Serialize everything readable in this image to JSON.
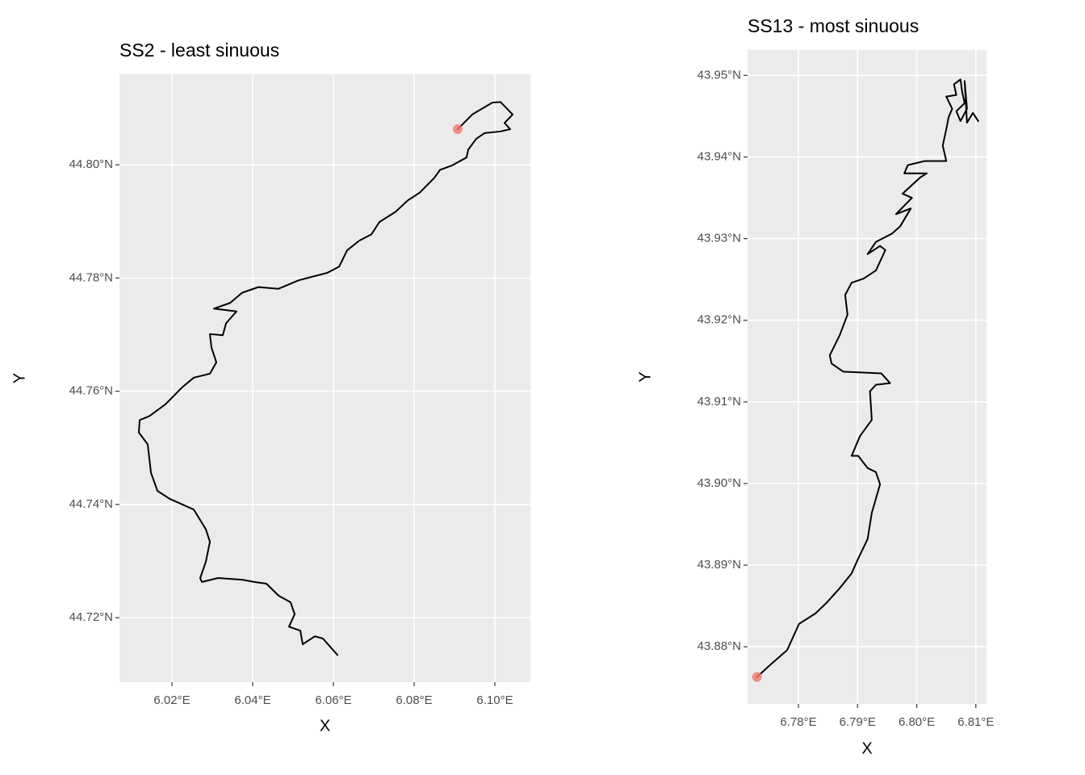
{
  "chart_data": [
    {
      "type": "line",
      "title": "SS2 - least sinuous",
      "x_label": "X",
      "y_label": "Y",
      "color": "#000000",
      "xlim": [
        6.007,
        6.1088
      ],
      "ylim": [
        44.7086,
        44.816
      ],
      "xticks": [
        {
          "value": 6.02,
          "label": "6.02°E"
        },
        {
          "value": 6.04,
          "label": "6.04°E"
        },
        {
          "value": 6.06,
          "label": "6.06°E"
        },
        {
          "value": 6.08,
          "label": "6.08°E"
        },
        {
          "value": 6.1,
          "label": "6.10°E"
        }
      ],
      "yticks": [
        {
          "value": 44.72,
          "label": "44.72°N"
        },
        {
          "value": 44.74,
          "label": "44.74°N"
        },
        {
          "value": 44.76,
          "label": "44.76°N"
        },
        {
          "value": 44.78,
          "label": "44.78°N"
        },
        {
          "value": 44.8,
          "label": "44.80°N"
        }
      ],
      "grid": true,
      "x": [
        6.0908,
        6.0944,
        6.0994,
        6.1014,
        6.1044,
        6.1024,
        6.1038,
        6.1014,
        6.0974,
        6.0954,
        6.0934,
        6.093,
        6.0894,
        6.0864,
        6.085,
        6.0814,
        6.0784,
        6.0754,
        6.0714,
        6.0694,
        6.0664,
        6.0634,
        6.0614,
        6.0584,
        6.0514,
        6.0464,
        6.0414,
        6.0374,
        6.0344,
        6.0304,
        6.036,
        6.0334,
        6.0326,
        6.0294,
        6.0298,
        6.031,
        6.0294,
        6.0254,
        6.0224,
        6.0184,
        6.0144,
        6.012,
        6.0118,
        6.014,
        6.0148,
        6.0164,
        6.0194,
        6.0254,
        6.0284,
        6.0294,
        6.0284,
        6.027,
        6.0274,
        6.0314,
        6.0374,
        6.0404,
        6.0434,
        6.0464,
        6.0494,
        6.0504,
        6.049,
        6.0518,
        6.0524,
        6.0554,
        6.0574,
        6.061
      ],
      "values": [
        44.8063,
        44.8089,
        44.811,
        44.8111,
        44.8089,
        44.8074,
        44.8063,
        44.8059,
        44.8056,
        44.8046,
        44.8027,
        44.8013,
        44.7999,
        44.7991,
        44.7977,
        44.7951,
        44.7937,
        44.7917,
        44.7899,
        44.7877,
        44.7866,
        44.7849,
        44.782,
        44.7809,
        44.7796,
        44.7781,
        44.7784,
        44.7774,
        44.7756,
        44.7746,
        44.7741,
        44.772,
        44.7699,
        44.7701,
        44.7677,
        44.7651,
        44.7631,
        44.7624,
        44.7606,
        44.7577,
        44.7556,
        44.7549,
        44.7527,
        44.7506,
        44.7456,
        44.7424,
        44.741,
        44.7391,
        44.7356,
        44.7334,
        44.7299,
        44.727,
        44.7263,
        44.727,
        44.7267,
        44.7263,
        44.726,
        44.7239,
        44.7227,
        44.7206,
        44.7184,
        44.7177,
        44.7153,
        44.7167,
        44.7163,
        44.7134
      ],
      "point": {
        "x": 6.0908,
        "y": 44.8063,
        "color": "#f8766d"
      }
    },
    {
      "type": "line",
      "title": "SS13 - most sinuous",
      "x_label": "X",
      "y_label": "Y",
      "color": "#000000",
      "xlim": [
        6.7714,
        6.8118
      ],
      "ylim": [
        43.873,
        43.9531
      ],
      "xticks": [
        {
          "value": 6.78,
          "label": "6.78°E"
        },
        {
          "value": 6.79,
          "label": "6.79°E"
        },
        {
          "value": 6.8,
          "label": "6.80°E"
        },
        {
          "value": 6.81,
          "label": "6.81°E"
        }
      ],
      "yticks": [
        {
          "value": 43.88,
          "label": "43.88°N"
        },
        {
          "value": 43.89,
          "label": "43.89°N"
        },
        {
          "value": 43.9,
          "label": "43.90°N"
        },
        {
          "value": 43.91,
          "label": "43.91°N"
        },
        {
          "value": 43.92,
          "label": "43.92°N"
        },
        {
          "value": 43.93,
          "label": "43.93°N"
        },
        {
          "value": 43.94,
          "label": "43.94°N"
        },
        {
          "value": 43.95,
          "label": "43.95°N"
        }
      ],
      "grid": true,
      "x": [
        6.773,
        6.7754,
        6.7781,
        6.7801,
        6.7829,
        6.7849,
        6.787,
        6.789,
        6.7901,
        6.7917,
        6.7924,
        6.7938,
        6.7931,
        6.7917,
        6.7901,
        6.789,
        6.7904,
        6.7924,
        6.7921,
        6.7931,
        6.7955,
        6.794,
        6.7876,
        6.7856,
        6.7853,
        6.787,
        6.7883,
        6.7879,
        6.789,
        6.791,
        6.7931,
        6.7947,
        6.7938,
        6.7917,
        6.7931,
        6.7958,
        6.7972,
        6.799,
        6.7965,
        6.7992,
        6.7976,
        6.8006,
        6.8017,
        6.7979,
        6.7985,
        6.8013,
        6.805,
        6.8044,
        6.805,
        6.8054,
        6.806,
        6.805,
        6.8067,
        6.8063,
        6.8074,
        6.8077,
        6.8081,
        6.8067,
        6.8074,
        6.8085,
        6.8081,
        6.8085,
        6.8095,
        6.8104
      ],
      "values": [
        43.8763,
        43.8779,
        43.8796,
        43.8828,
        43.8841,
        43.8855,
        43.8872,
        43.889,
        43.8908,
        43.8932,
        43.8964,
        43.8999,
        43.9014,
        43.9019,
        43.9034,
        43.9034,
        43.9058,
        43.9078,
        43.9113,
        43.9121,
        43.9123,
        43.9135,
        43.9137,
        43.9147,
        43.9157,
        43.9182,
        43.9207,
        43.9231,
        43.9246,
        43.9251,
        43.9261,
        43.9286,
        43.9291,
        43.9281,
        43.9296,
        43.9306,
        43.9315,
        43.9337,
        43.933,
        43.935,
        43.9355,
        43.9375,
        43.938,
        43.938,
        43.939,
        43.9395,
        43.9395,
        43.9414,
        43.9434,
        43.9449,
        43.9459,
        43.9474,
        43.9476,
        43.9489,
        43.9495,
        43.9479,
        43.9466,
        43.9456,
        43.9444,
        43.9459,
        43.9493,
        43.9442,
        43.9454,
        43.9444
      ],
      "point": {
        "x": 6.773,
        "y": 43.8763,
        "color": "#f8766d"
      }
    }
  ]
}
